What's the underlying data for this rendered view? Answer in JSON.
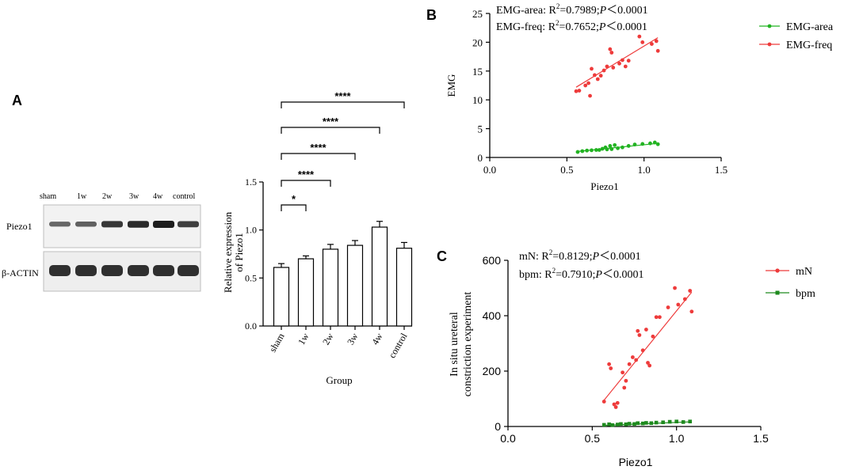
{
  "panels": {
    "a": {
      "letter": "A"
    },
    "b": {
      "letter": "B"
    },
    "c": {
      "letter": "C"
    }
  },
  "blot": {
    "lane_labels": [
      "sham",
      "1w",
      "2w",
      "3w",
      "4w",
      "control"
    ],
    "row_labels": [
      "Piezo1",
      "β-ACTIN"
    ],
    "piezo1_band_intensity": [
      0.45,
      0.5,
      0.8,
      0.9,
      1.0,
      0.75
    ],
    "actin_band_intensity": [
      1.0,
      1.0,
      1.0,
      1.0,
      1.0,
      1.0
    ]
  },
  "chart_data": [
    {
      "id": "A-bar",
      "type": "bar",
      "title": "",
      "xlabel": "Group",
      "ylabel": "Relative expression of Piezo1",
      "categories": [
        "sham",
        "1w",
        "2w",
        "3w",
        "4w",
        "control"
      ],
      "values": [
        0.61,
        0.7,
        0.8,
        0.84,
        1.03,
        0.81
      ],
      "errors": [
        0.04,
        0.03,
        0.05,
        0.05,
        0.06,
        0.06
      ],
      "ylim": [
        0,
        1.5
      ],
      "yticks": [
        "0.0",
        "0.5",
        "1.0",
        "1.5"
      ],
      "significance": [
        {
          "from": 0,
          "to": 1,
          "label": "*"
        },
        {
          "from": 0,
          "to": 2,
          "label": "****"
        },
        {
          "from": 0,
          "to": 3,
          "label": "****"
        },
        {
          "from": 0,
          "to": 4,
          "label": "****"
        },
        {
          "from": 0,
          "to": 5,
          "label": "****"
        }
      ]
    },
    {
      "id": "B-scatter",
      "type": "scatter",
      "xlabel": "Piezo1",
      "ylabel": "EMG",
      "xlim": [
        0,
        1.5
      ],
      "ylim": [
        0,
        25
      ],
      "xticks": [
        "0.0",
        "0.5",
        "1.0",
        "1.5"
      ],
      "yticks": [
        "0",
        "5",
        "10",
        "15",
        "20",
        "25"
      ],
      "annotations": [
        {
          "text_pre": "EMG-area: R",
          "sup": "2",
          "text_mid": "=0.7989;",
          "p_label": "P",
          "text_post": "＜0.0001"
        },
        {
          "text_pre": "EMG-freq: R",
          "sup": "2",
          "text_mid": "=0.7652;",
          "p_label": "P",
          "text_post": "＜0.0001"
        }
      ],
      "legend": [
        "EMG-area",
        "EMG-freq"
      ],
      "legend_position": "top-right",
      "series": [
        {
          "name": "EMG-area",
          "color": "#22b322",
          "marker": "circle",
          "fit": [
            [
              0.57,
              1.05
            ],
            [
              1.09,
              2.45
            ]
          ],
          "points": [
            [
              0.57,
              0.95
            ],
            [
              0.6,
              1.1
            ],
            [
              0.63,
              1.2
            ],
            [
              0.66,
              1.25
            ],
            [
              0.69,
              1.3
            ],
            [
              0.71,
              1.3
            ],
            [
              0.73,
              1.5
            ],
            [
              0.75,
              1.75
            ],
            [
              0.76,
              1.4
            ],
            [
              0.78,
              2.0
            ],
            [
              0.79,
              1.45
            ],
            [
              0.81,
              2.15
            ],
            [
              0.83,
              1.6
            ],
            [
              0.86,
              1.75
            ],
            [
              0.9,
              2.0
            ],
            [
              0.94,
              2.25
            ],
            [
              0.99,
              2.35
            ],
            [
              1.04,
              2.45
            ],
            [
              1.07,
              2.6
            ],
            [
              1.09,
              2.3
            ]
          ]
        },
        {
          "name": "EMG-freq",
          "color": "#ee3b3b",
          "marker": "circle",
          "fit": [
            [
              0.56,
              12.2
            ],
            [
              1.09,
              20.8
            ]
          ],
          "points": [
            [
              0.56,
              11.5
            ],
            [
              0.58,
              11.6
            ],
            [
              0.62,
              12.5
            ],
            [
              0.64,
              12.9
            ],
            [
              0.65,
              10.7
            ],
            [
              0.66,
              15.4
            ],
            [
              0.68,
              14.3
            ],
            [
              0.7,
              13.6
            ],
            [
              0.72,
              14.2
            ],
            [
              0.74,
              15.1
            ],
            [
              0.76,
              15.8
            ],
            [
              0.78,
              18.8
            ],
            [
              0.79,
              18.2
            ],
            [
              0.8,
              15.6
            ],
            [
              0.84,
              16.3
            ],
            [
              0.86,
              16.9
            ],
            [
              0.88,
              15.8
            ],
            [
              0.9,
              16.8
            ],
            [
              0.97,
              21.0
            ],
            [
              0.99,
              20.0
            ],
            [
              1.05,
              19.7
            ],
            [
              1.08,
              20.2
            ],
            [
              1.09,
              18.5
            ]
          ]
        }
      ]
    },
    {
      "id": "C-scatter",
      "type": "scatter",
      "xlabel": "Piezo1",
      "ylabel_lines": [
        "In situ ureteral",
        "constriction experiment"
      ],
      "xlim": [
        0,
        1.5
      ],
      "ylim": [
        0,
        600
      ],
      "xticks": [
        "0.0",
        "0.5",
        "1.0",
        "1.5"
      ],
      "yticks": [
        "0",
        "200",
        "400",
        "600"
      ],
      "annotations": [
        {
          "text_pre": "mN: R",
          "sup": "2",
          "text_mid": "=0.8129;",
          "p_label": "P",
          "text_post": "＜0.0001"
        },
        {
          "text_pre": "bpm: R",
          "sup": "2",
          "text_mid": "=0.7910;",
          "p_label": "P",
          "text_post": "＜0.0001"
        }
      ],
      "legend": [
        "mN",
        "bpm"
      ],
      "legend_position": "top-right",
      "series": [
        {
          "name": "mN",
          "color": "#ee3b3b",
          "marker": "circle",
          "fit": [
            [
              0.57,
              95
            ],
            [
              1.09,
              485
            ]
          ],
          "points": [
            [
              0.57,
              90
            ],
            [
              0.6,
              225
            ],
            [
              0.61,
              210
            ],
            [
              0.63,
              80
            ],
            [
              0.64,
              70
            ],
            [
              0.65,
              85
            ],
            [
              0.68,
              195
            ],
            [
              0.69,
              140
            ],
            [
              0.7,
              165
            ],
            [
              0.72,
              225
            ],
            [
              0.74,
              250
            ],
            [
              0.76,
              240
            ],
            [
              0.77,
              345
            ],
            [
              0.78,
              330
            ],
            [
              0.8,
              275
            ],
            [
              0.82,
              350
            ],
            [
              0.83,
              230
            ],
            [
              0.84,
              220
            ],
            [
              0.86,
              325
            ],
            [
              0.88,
              395
            ],
            [
              0.9,
              395
            ],
            [
              0.95,
              430
            ],
            [
              0.99,
              500
            ],
            [
              1.01,
              440
            ],
            [
              1.05,
              460
            ],
            [
              1.08,
              490
            ],
            [
              1.09,
              415
            ]
          ]
        },
        {
          "name": "bpm",
          "color": "#1e8a1e",
          "marker": "square",
          "fit": [
            [
              0.57,
              4
            ],
            [
              1.09,
              17
            ]
          ],
          "points": [
            [
              0.57,
              6
            ],
            [
              0.6,
              8
            ],
            [
              0.62,
              5
            ],
            [
              0.65,
              7
            ],
            [
              0.67,
              9
            ],
            [
              0.7,
              8
            ],
            [
              0.72,
              10
            ],
            [
              0.75,
              9
            ],
            [
              0.77,
              12
            ],
            [
              0.8,
              11
            ],
            [
              0.82,
              13
            ],
            [
              0.85,
              12
            ],
            [
              0.88,
              14
            ],
            [
              0.92,
              15
            ],
            [
              0.96,
              17
            ],
            [
              1.0,
              18
            ],
            [
              1.04,
              16
            ],
            [
              1.08,
              18
            ]
          ]
        }
      ]
    }
  ]
}
